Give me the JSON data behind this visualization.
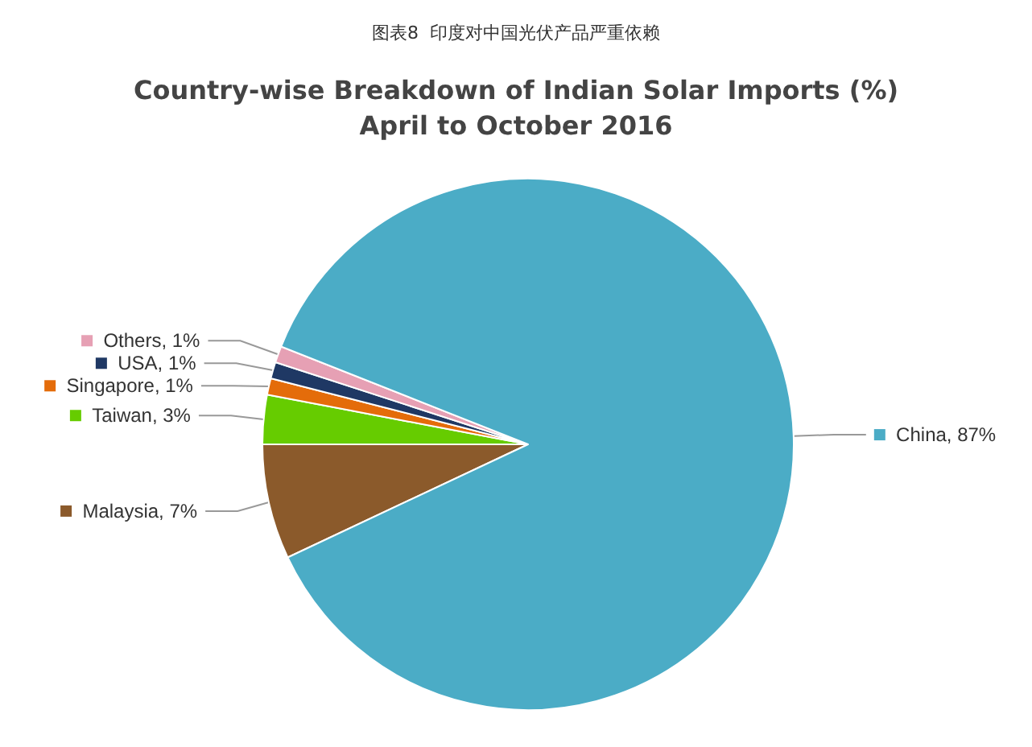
{
  "chart_data": {
    "type": "pie",
    "title": "图表8  印度对中国光伏产品严重依赖",
    "subtitle": "Country-wise Breakdown of Indian Solar Imports (%)\nApril to October 2016",
    "categories": [
      "Malaysia",
      "Taiwan",
      "Singapore",
      "USA",
      "Others",
      "China"
    ],
    "values": [
      7,
      3,
      1,
      1,
      1,
      87
    ],
    "value_labels": [
      "7%",
      "3%",
      "1%",
      "1%",
      "1%",
      "87%"
    ],
    "colors": [
      "#8b5a2b",
      "#66cc00",
      "#e46c0a",
      "#1f3864",
      "#e6a0b4",
      "#4bacc6"
    ],
    "legend": "left"
  }
}
